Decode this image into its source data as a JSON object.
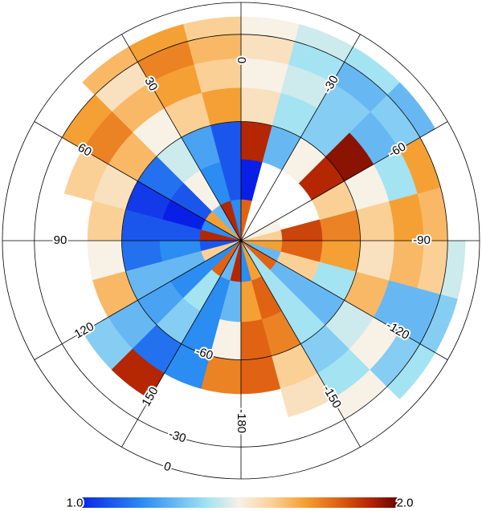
{
  "chart_data": {
    "type": "polar-heatmap",
    "lon_ticks": [
      0,
      30,
      60,
      90,
      120,
      150,
      -180,
      -150,
      -120,
      -90,
      -60,
      -30
    ],
    "lat_ticks": [
      -60,
      -30,
      0
    ],
    "lat_bins": [
      -90,
      -80,
      -70,
      -60,
      -50,
      -40,
      -30,
      -20
    ],
    "lon_bins": [
      0,
      15,
      30,
      45,
      60,
      75,
      90,
      105,
      120,
      135,
      150,
      165,
      180,
      195,
      210,
      225,
      240,
      255,
      270,
      285,
      300,
      315,
      330,
      345,
      360
    ],
    "values": [
      [
        1.2,
        1.9,
        1.3,
        1.7,
        1.2,
        1.9,
        1.1,
        1.6,
        1.2,
        1.8,
        1.3,
        1.9,
        1.2,
        1.7,
        1.4,
        1.8,
        1.3,
        1.7,
        1.6,
        1.5,
        null,
        null,
        null,
        1.8
      ],
      [
        1.1,
        1.2,
        1.5,
        1.1,
        1.0,
        1.1,
        1.2,
        1.3,
        1.2,
        1.4,
        1.2,
        1.3,
        1.7,
        1.8,
        1.4,
        1.3,
        1.6,
        1.8,
        1.85,
        null,
        null,
        null,
        null,
        1.0
      ],
      [
        1.1,
        1.25,
        1.45,
        1.15,
        1.05,
        1.1,
        1.15,
        1.3,
        1.25,
        1.35,
        1.2,
        1.5,
        1.8,
        1.75,
        1.4,
        1.3,
        1.4,
        1.7,
        1.75,
        1.6,
        1.9,
        1.5,
        1.3,
        1.9
      ],
      [
        1.7,
        1.6,
        1.5,
        1.65,
        1.55,
        1.6,
        1.5,
        1.65,
        1.3,
        1.15,
        1.2,
        1.75,
        1.8,
        1.6,
        1.35,
        1.45,
        1.65,
        1.55,
        1.6,
        1.5,
        1.95,
        1.35,
        1.4,
        1.55
      ],
      [
        1.6,
        1.7,
        1.65,
        1.75,
        1.6,
        null,
        null,
        null,
        1.35,
        1.9,
        null,
        null,
        null,
        1.55,
        1.4,
        1.5,
        1.3,
        1.65,
        1.7,
        1.4,
        1.3,
        1.35,
        1.45,
        1.5
      ],
      [
        1.65,
        1.75,
        1.55,
        1.7,
        null,
        null,
        null,
        null,
        null,
        null,
        null,
        null,
        null,
        null,
        1.5,
        1.35,
        1.3,
        1.6,
        1.65,
        1.7,
        1.35,
        1.3,
        1.4,
        1.55
      ],
      [
        1.6,
        1.7,
        1.65,
        null,
        null,
        null,
        null,
        null,
        null,
        null,
        null,
        null,
        null,
        null,
        null,
        1.4,
        1.35,
        1.45,
        null,
        null,
        1.3,
        1.4,
        1.45,
        1.5
      ]
    ],
    "clim": [
      1.0,
      2.0
    ],
    "cticks": [
      {
        "value": 1.0,
        "label": "1.0"
      },
      {
        "value": 2.0,
        "label": "2.0"
      }
    ]
  }
}
